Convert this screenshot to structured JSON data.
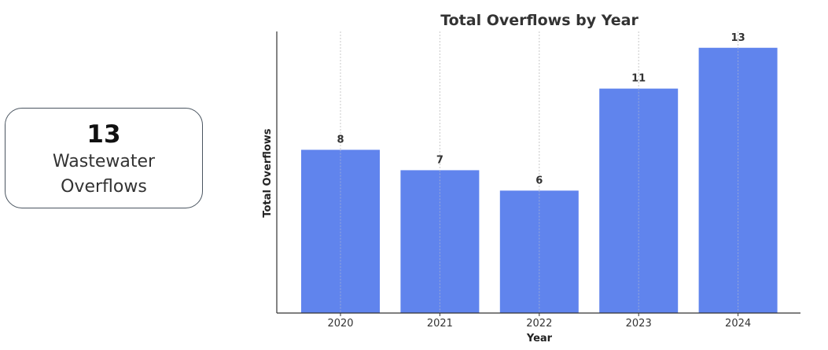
{
  "kpi": {
    "value": "13",
    "label": "Wastewater Overflows"
  },
  "colors": {
    "bar": "#6084ed",
    "grid": "#c8c8c8",
    "axis": "#333333"
  },
  "chart_data": {
    "type": "bar",
    "title": "Total Overflows by Year",
    "xlabel": "Year",
    "ylabel": "Total Overflows",
    "categories": [
      "2020",
      "2021",
      "2022",
      "2023",
      "2024"
    ],
    "values": [
      8,
      7,
      6,
      11,
      13
    ],
    "ylim": [
      0,
      13.8
    ],
    "grid": "vertical dotted lines at category centers",
    "show_y_ticks": false,
    "data_labels": true
  }
}
